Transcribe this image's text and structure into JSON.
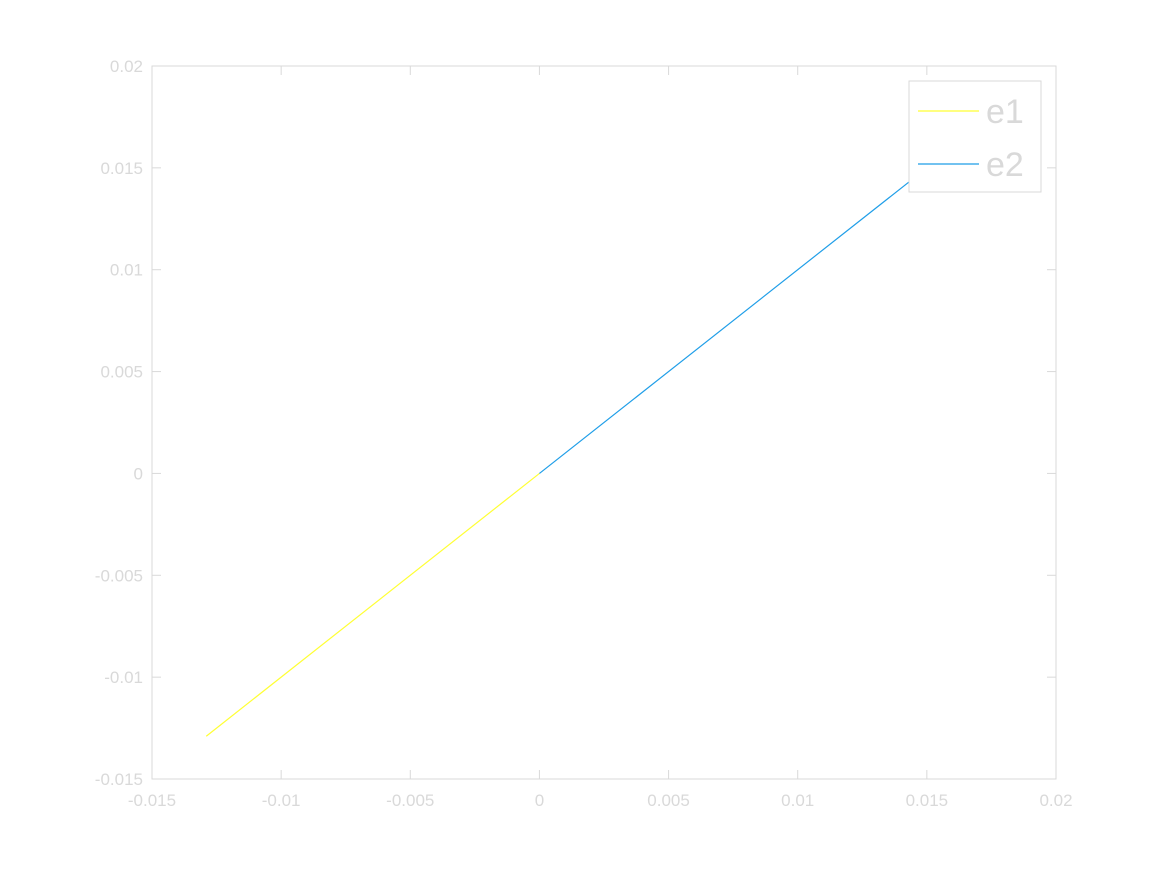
{
  "chart_data": {
    "type": "line",
    "title": "",
    "xlabel": "",
    "ylabel": "",
    "xlim": [
      -0.015,
      0.02
    ],
    "ylim": [
      -0.015,
      0.02
    ],
    "x_ticks": [
      -0.015,
      -0.01,
      -0.005,
      0,
      0.005,
      0.01,
      0.015,
      0.02
    ],
    "y_ticks": [
      -0.015,
      -0.01,
      -0.005,
      0,
      0.005,
      0.01,
      0.015,
      0.02
    ],
    "x_tick_labels": [
      "-0.015",
      "-0.01",
      "-0.005",
      "0",
      "0.005",
      "0.01",
      "0.015",
      "0.02"
    ],
    "y_tick_labels": [
      "-0.015",
      "-0.01",
      "-0.005",
      "0",
      "0.005",
      "0.01",
      "0.015",
      "0.02"
    ],
    "grid": false,
    "legend_position": "top-right",
    "axis_color": "#d9d9d9",
    "series": [
      {
        "name": "e1",
        "color": "#ffff33",
        "x": [
          -0.0129,
          0
        ],
        "y": [
          -0.0129,
          0
        ]
      },
      {
        "name": "e2",
        "color": "#1f9ee8",
        "x": [
          0,
          0.0155
        ],
        "y": [
          0,
          0.0155
        ]
      }
    ]
  }
}
